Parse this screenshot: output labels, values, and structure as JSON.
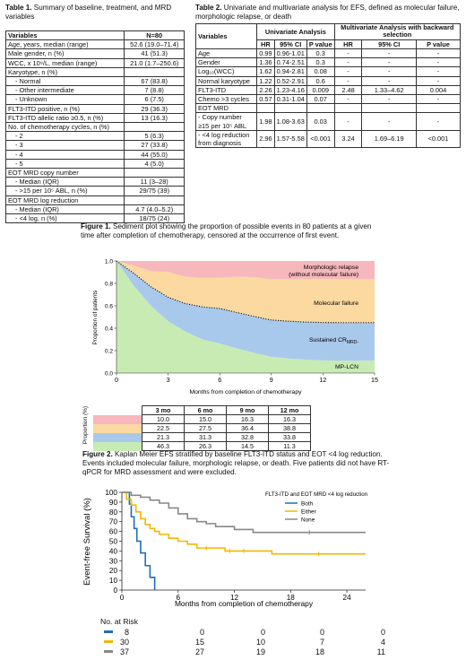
{
  "table1": {
    "caption_bold": "Table 1.",
    "caption_text": " Summary of baseline, treatment, and MRD variables",
    "header": [
      "Variables",
      "N=80"
    ],
    "rows": [
      {
        "label": "Age, years, median (range)",
        "value": "52.6 (19.0–71.4)",
        "indent": false
      },
      {
        "label": "Male gender, n (%)",
        "value": "41 (51.3)",
        "indent": false
      },
      {
        "label": "WCC, x 10⁹/L, median (range)",
        "value": "21.0 (1.7–250.6)",
        "indent": false
      },
      {
        "label": "Karyotype, n (%)",
        "value": "",
        "indent": false
      },
      {
        "label": "-    Normal",
        "value": "67 (83.8)",
        "indent": true
      },
      {
        "label": "-    Other intermediate",
        "value": "7 (8.8)",
        "indent": true
      },
      {
        "label": "-    Unknown",
        "value": "6 (7.5)",
        "indent": true
      },
      {
        "label": "FLT3-ITD positive, n (%)",
        "value": "29 (36.3)",
        "indent": false
      },
      {
        "label": "FLT3-ITD allelic ratio ≥0.5, n (%)",
        "value": "13 (16.3)",
        "indent": false
      },
      {
        "label": "No. of chemotherapy cycles, n (%)",
        "value": "",
        "indent": false
      },
      {
        "label": "-    2",
        "value": "5 (6.3)",
        "indent": true
      },
      {
        "label": "-    3",
        "value": "27 (33.8)",
        "indent": true
      },
      {
        "label": "-    4",
        "value": "44 (55.0)",
        "indent": true
      },
      {
        "label": "-    5",
        "value": "4 (5.0)",
        "indent": true
      },
      {
        "label": "EOT MRD copy number",
        "value": "",
        "indent": false
      },
      {
        "label": "-    Median (IQR)",
        "value": "11 (3–28)",
        "indent": true
      },
      {
        "label": "-    >15 per 10⁵ ABL, n (%)",
        "value": "29/75 (39)",
        "indent": true
      },
      {
        "label": "EOT MRD log reduction",
        "value": "",
        "indent": false
      },
      {
        "label": "-    Median (IQR)",
        "value": "4.7 (4.0–5.2)",
        "indent": true
      },
      {
        "label": "-    <4 log, n (%)",
        "value": "18/75 (24)",
        "indent": true
      }
    ]
  },
  "table2": {
    "caption_bold": "Table 2.",
    "caption_text": " Univariate and multivariate analysis for EFS, defined as molecular failure, morphologic relapse, or death",
    "group_headers": [
      "Variables",
      "Univariate Analysis",
      "Multivariate Analysis with backward selection"
    ],
    "sub_headers": [
      "HR",
      "95% CI",
      "P value",
      "HR",
      "95% CI",
      "P value"
    ],
    "rows": [
      {
        "label": "Age",
        "cells": [
          "0.99",
          "0.96-1.01",
          "0.3",
          "-",
          "-",
          "-"
        ]
      },
      {
        "label": "Gender",
        "cells": [
          "1.36",
          "0.74-2.51",
          "0.3",
          "-",
          "-",
          "-"
        ]
      },
      {
        "label": "Log₁₀(WCC)",
        "cells": [
          "1.62",
          "0.94-2.81",
          "0.08",
          "-",
          "-",
          "-"
        ]
      },
      {
        "label": "Normal karyotype",
        "cells": [
          "1.22",
          "0.52-2.91",
          "0.6",
          "-",
          "-",
          "-"
        ]
      },
      {
        "label": "FLT3-ITD",
        "cells": [
          "2.26",
          "1.23-4.16",
          "0.009",
          "2.48",
          "1.33–4.62",
          "0.004"
        ]
      },
      {
        "label": "Chemo >3 cycles",
        "cells": [
          "0.57",
          "0.31-1.04",
          "0.07",
          "-",
          "-",
          "-"
        ]
      },
      {
        "label": "EOT MRD",
        "cells": [
          "",
          "",
          "",
          "",
          "",
          ""
        ]
      },
      {
        "label": "- Copy number ≥15 per 10⁵ ABL",
        "cells": [
          "1.98",
          "1.08-3.63",
          "0.03",
          "-",
          "-",
          "-"
        ]
      },
      {
        "label": "- <4 log reduction from diagnosis",
        "cells": [
          "2.96",
          "1.57-5.58",
          "<0.001",
          "3.24",
          "1.69–6.19",
          "<0.001"
        ]
      }
    ]
  },
  "figure1": {
    "caption_bold": "Figure 1.",
    "caption_text": " Sediment plot showing the proportion of possible events in 80 patients at a given time after completion of chemotherapy, censored at the occurrence of first event.",
    "table_headers": [
      "3 mo",
      "6 mo",
      "9 mo",
      "12 mo"
    ],
    "table_rows": [
      [
        "10.0",
        "15.0",
        "16.3",
        "16.3"
      ],
      [
        "22.5",
        "27.5",
        "36.4",
        "38.8"
      ],
      [
        "21.3",
        "31.3",
        "32.8",
        "33.8"
      ],
      [
        "46.3",
        "26.3",
        "14.5",
        "11.3"
      ]
    ],
    "table_axis_label": "Proportion (%)"
  },
  "figure2": {
    "caption_bold": "Figure 2.",
    "caption_text": " Kaplan Meier EFS stratified by baseline FLT3-ITD status and EOT <4 log reduction. Events included molecular failure, morphologic relapse, or death. Five patients did not have RT-qPCR for MRD assessment and were excluded.",
    "at_risk_label": "No. at Risk",
    "at_risk": [
      {
        "color": "#1f6fb4",
        "values": [
          "8",
          "0",
          "0",
          "0",
          "0"
        ]
      },
      {
        "color": "#f2b705",
        "values": [
          "30",
          "15",
          "10",
          "7",
          "4"
        ]
      },
      {
        "color": "#888888",
        "values": [
          "37",
          "27",
          "19",
          "18",
          "11"
        ]
      }
    ]
  },
  "chart_data": [
    {
      "type": "area",
      "title": "",
      "xlabel": "Months from completion of chemotherapy",
      "ylabel": "Proportion of patients",
      "xlim": [
        0,
        15
      ],
      "ylim": [
        0,
        1.0
      ],
      "xticks": [
        0,
        3,
        6,
        9,
        12,
        15
      ],
      "yticks": [
        0,
        0.2,
        0.4,
        0.6,
        0.8,
        1.0
      ],
      "x": [
        0,
        1,
        2,
        3,
        4,
        5,
        6,
        7,
        8,
        9,
        10,
        11,
        12,
        13,
        14,
        15
      ],
      "series": [
        {
          "name": "MP-LCN",
          "color": "#c8ebb4",
          "values": [
            1.0,
            0.78,
            0.6,
            0.463,
            0.37,
            0.3,
            0.263,
            0.22,
            0.18,
            0.145,
            0.13,
            0.12,
            0.113,
            0.11,
            0.11,
            0.11
          ]
        },
        {
          "name": "Sustained CR MRD-",
          "color": "#a9c9ec",
          "values": [
            0.0,
            0.11,
            0.17,
            0.213,
            0.25,
            0.29,
            0.313,
            0.32,
            0.325,
            0.328,
            0.333,
            0.335,
            0.338,
            0.34,
            0.34,
            0.34
          ]
        },
        {
          "name": "Molecular failure",
          "color": "#fbd9a0",
          "values": [
            0.0,
            0.07,
            0.14,
            0.225,
            0.24,
            0.26,
            0.275,
            0.32,
            0.35,
            0.364,
            0.375,
            0.385,
            0.388,
            0.39,
            0.39,
            0.39
          ]
        },
        {
          "name": "Morphologic relapse (without molecular failure)",
          "color": "#f6b7bd",
          "values": [
            0.0,
            0.04,
            0.09,
            0.1,
            0.14,
            0.15,
            0.15,
            0.16,
            0.163,
            0.163,
            0.163,
            0.163,
            0.163,
            0.163,
            0.163,
            0.163
          ]
        }
      ]
    },
    {
      "type": "line",
      "title": "",
      "xlabel": "Months from completion of chemotherapy",
      "ylabel": "Event-free Survival (%)",
      "xlim": [
        0,
        26
      ],
      "ylim": [
        0,
        100
      ],
      "xticks": [
        0,
        6,
        12,
        18,
        24
      ],
      "yticks": [
        0,
        10,
        20,
        30,
        40,
        50,
        60,
        70,
        80,
        90,
        100
      ],
      "legend_title": "FLT3-ITD and EOT MRD <4 log reduction",
      "legend_position": "top-right",
      "series": [
        {
          "name": "Both",
          "color": "#1f6fb4",
          "x": [
            0,
            0.8,
            1.0,
            1.3,
            1.6,
            2.0,
            2.5,
            3.0,
            3.5
          ],
          "y": [
            100,
            88,
            75,
            63,
            50,
            38,
            25,
            13,
            0
          ]
        },
        {
          "name": "Either",
          "color": "#f2b705",
          "x": [
            0,
            0.5,
            1,
            1.5,
            2,
            2.5,
            3,
            3.5,
            4,
            5,
            6,
            7,
            8,
            10,
            11,
            12,
            14,
            16,
            26
          ],
          "y": [
            100,
            93,
            87,
            80,
            73,
            67,
            63,
            60,
            57,
            53,
            50,
            47,
            43,
            43,
            40,
            40,
            40,
            37,
            37
          ]
        },
        {
          "name": "None",
          "color": "#888888",
          "x": [
            0,
            1,
            2,
            3,
            4,
            5,
            6,
            7,
            8,
            9,
            10,
            12,
            14,
            26
          ],
          "y": [
            100,
            97,
            95,
            92,
            89,
            84,
            78,
            73,
            70,
            68,
            65,
            62,
            59,
            59
          ]
        }
      ]
    }
  ]
}
